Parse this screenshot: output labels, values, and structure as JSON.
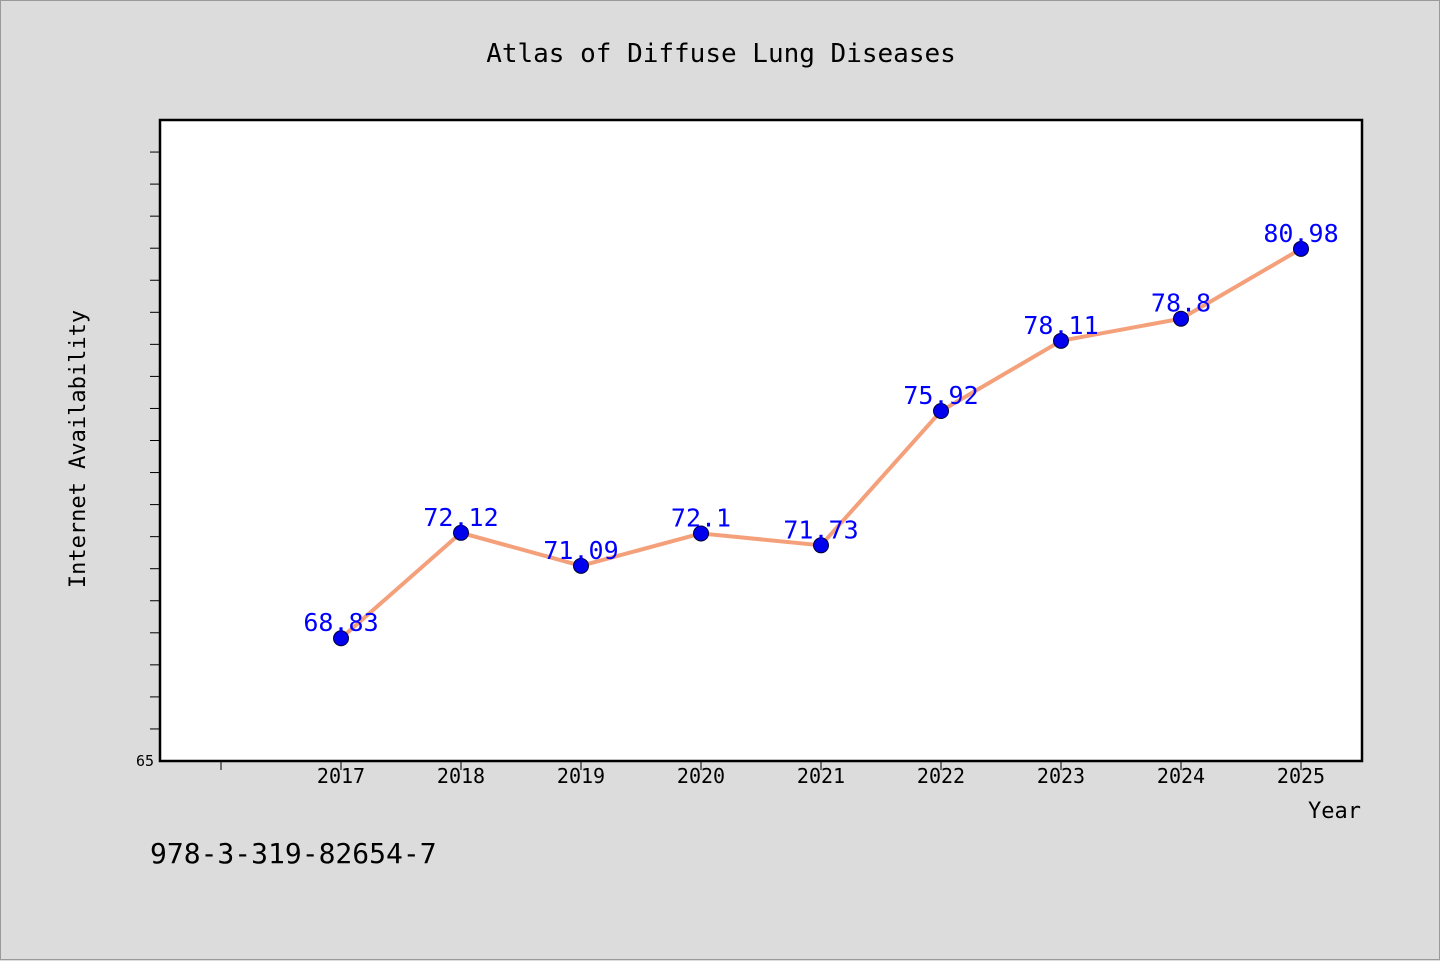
{
  "colors": {
    "background": "#dcdcdc",
    "plot_background": "#ffffff",
    "line": "#f4a07a",
    "marker": "#0000ee",
    "data_label": "#0000ff"
  },
  "footer": {
    "isbn": "978-3-319-82654-7"
  },
  "chart_data": {
    "type": "line",
    "title": "Atlas of Diffuse Lung Diseases",
    "xlabel": "Year",
    "ylabel": "Internet Availability",
    "categories": [
      "2017",
      "2018",
      "2019",
      "2020",
      "2021",
      "2022",
      "2023",
      "2024",
      "2025"
    ],
    "values": [
      68.83,
      72.12,
      71.09,
      72.1,
      71.73,
      75.92,
      78.11,
      78.8,
      80.98
    ],
    "data_labels": [
      "68.83",
      "72.12",
      "71.09",
      "72.1",
      "71.73",
      "75.92",
      "78.11",
      "78.8",
      "80.98"
    ],
    "ylim": [
      65,
      85
    ],
    "y_tick_labels": [
      "65"
    ],
    "grid": false,
    "legend": "none"
  }
}
